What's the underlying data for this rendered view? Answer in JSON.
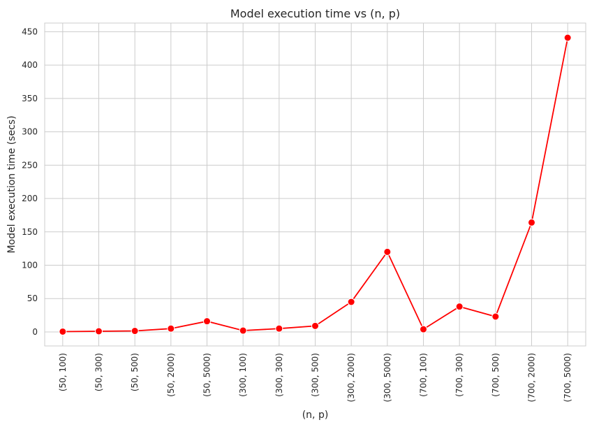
{
  "chart_data": {
    "type": "line",
    "title": "Model execution time vs (n, p)",
    "xlabel": "(n, p)",
    "ylabel": "Model execution time (secs)",
    "categories": [
      "(50, 100)",
      "(50, 300)",
      "(50, 500)",
      "(50, 2000)",
      "(50, 5000)",
      "(300, 100)",
      "(300, 300)",
      "(300, 500)",
      "(300, 2000)",
      "(300, 5000)",
      "(700, 100)",
      "(700, 300)",
      "(700, 500)",
      "(700, 2000)",
      "(700, 5000)"
    ],
    "values": [
      0.5,
      1,
      1.5,
      5,
      16,
      2,
      5,
      9,
      45,
      120,
      4,
      38,
      23,
      164,
      441
    ],
    "ylim": [
      -21,
      463
    ],
    "yticks": [
      0,
      50,
      100,
      150,
      200,
      250,
      300,
      350,
      400,
      450
    ],
    "grid": true,
    "color": "#ff0000",
    "background": "#ffffff",
    "grid_color": "#cccccc"
  }
}
